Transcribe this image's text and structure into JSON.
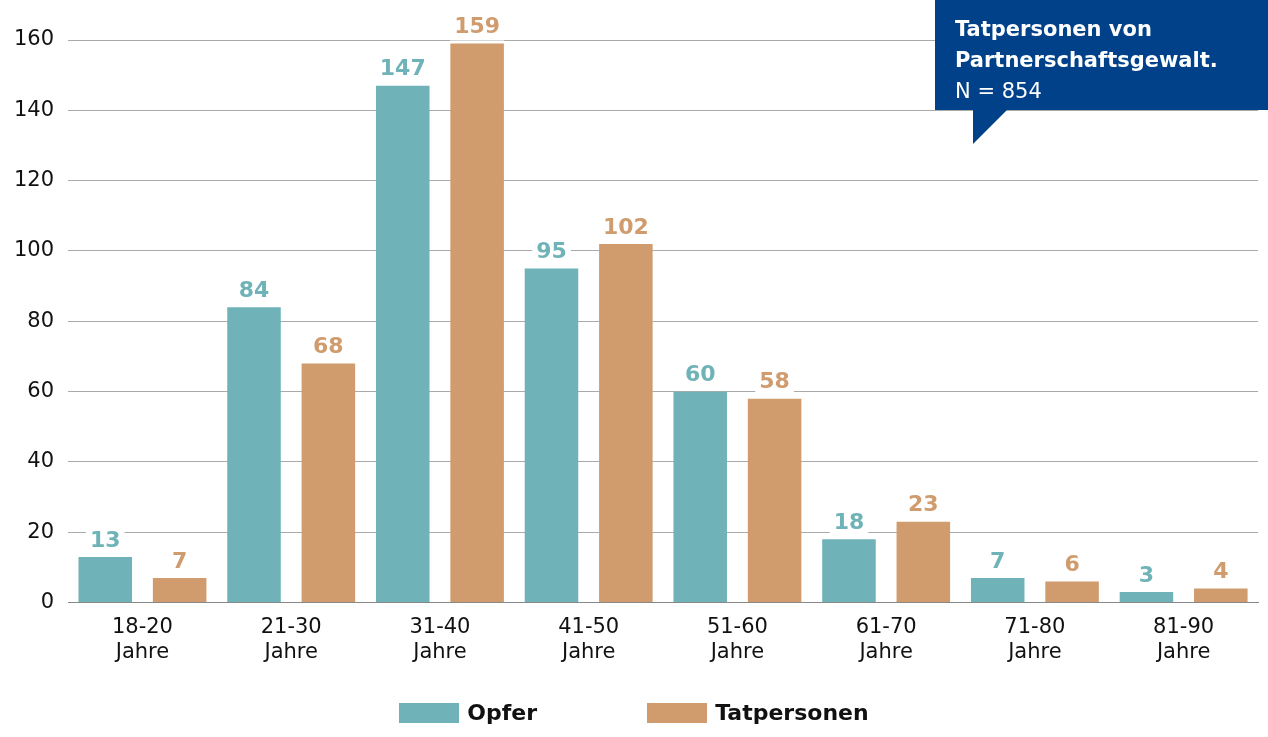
{
  "chart_data": {
    "type": "bar",
    "categories": [
      "18-20 Jahre",
      "21-30 Jahre",
      "31-40 Jahre",
      "41-50 Jahre",
      "51-60 Jahre",
      "61-70 Jahre",
      "71-80 Jahre",
      "81-90 Jahre"
    ],
    "series": [
      {
        "name": "Opfer",
        "color": "#6fb3b8",
        "values": [
          13,
          84,
          147,
          95,
          60,
          18,
          7,
          3
        ]
      },
      {
        "name": "Tatpersonen",
        "color": "#d09c6d",
        "values": [
          7,
          68,
          159,
          102,
          58,
          23,
          6,
          4
        ]
      }
    ],
    "ylim": [
      0,
      160
    ],
    "yticks": [
      0,
      20,
      40,
      60,
      80,
      100,
      120,
      140,
      160
    ],
    "grid": "y",
    "legend": "bottom",
    "data_labels": true,
    "annotations": [
      "Tatpersonen von Partnerschaftsgewalt.",
      "N = 854"
    ]
  }
}
